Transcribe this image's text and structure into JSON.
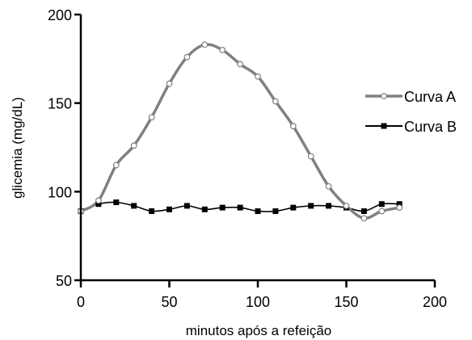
{
  "chart_data": {
    "type": "line",
    "title": "",
    "xlabel": "minutos após a refeição",
    "ylabel": "glicemia (mg/dL)",
    "xlim": [
      0,
      200
    ],
    "ylim": [
      50,
      200
    ],
    "xticks": [
      0,
      50,
      100,
      150,
      200
    ],
    "yticks": [
      50,
      100,
      150,
      200
    ],
    "grid": false,
    "legend": "right",
    "series": [
      {
        "name": "Curva A",
        "color": "#808080",
        "marker": "open-circle",
        "x": [
          0,
          10,
          20,
          30,
          40,
          50,
          60,
          70,
          80,
          90,
          100,
          110,
          120,
          130,
          140,
          150,
          160,
          170,
          180
        ],
        "y": [
          89,
          95,
          115,
          126,
          142,
          161,
          176,
          183,
          180,
          172,
          165,
          151,
          137,
          120,
          103,
          92,
          85,
          89,
          91
        ]
      },
      {
        "name": "Curva B",
        "color": "#000000",
        "marker": "filled-square",
        "x": [
          0,
          10,
          20,
          30,
          40,
          50,
          60,
          70,
          80,
          90,
          100,
          110,
          120,
          130,
          140,
          150,
          160,
          170,
          180
        ],
        "y": [
          89,
          93,
          94,
          92,
          89,
          90,
          92,
          90,
          91,
          91,
          89,
          89,
          91,
          92,
          92,
          91,
          89,
          93,
          93
        ]
      }
    ]
  }
}
